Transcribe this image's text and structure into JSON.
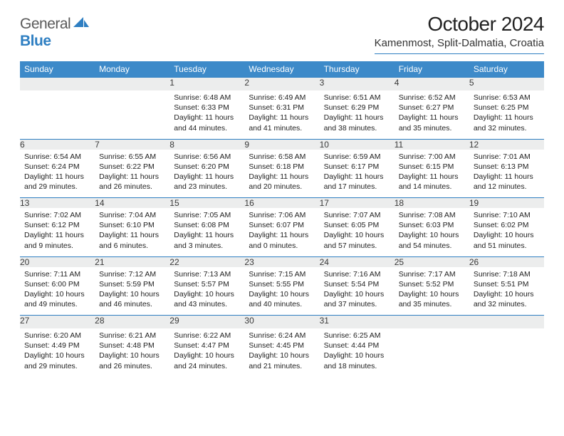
{
  "logo": {
    "word1": "General",
    "word2": "Blue"
  },
  "title": "October 2024",
  "location": "Kamenmost, Split-Dalmatia, Croatia",
  "colors": {
    "header_bg": "#3d8ac9",
    "rule": "#2f7fc2",
    "daynum_bg": "#eceded",
    "text": "#222222",
    "logo_gray": "#5a5a5a",
    "logo_blue": "#2f7fc2"
  },
  "day_headers": [
    "Sunday",
    "Monday",
    "Tuesday",
    "Wednesday",
    "Thursday",
    "Friday",
    "Saturday"
  ],
  "weeks": [
    [
      null,
      null,
      {
        "n": "1",
        "sr": "Sunrise: 6:48 AM",
        "ss": "Sunset: 6:33 PM",
        "dl1": "Daylight: 11 hours",
        "dl2": "and 44 minutes."
      },
      {
        "n": "2",
        "sr": "Sunrise: 6:49 AM",
        "ss": "Sunset: 6:31 PM",
        "dl1": "Daylight: 11 hours",
        "dl2": "and 41 minutes."
      },
      {
        "n": "3",
        "sr": "Sunrise: 6:51 AM",
        "ss": "Sunset: 6:29 PM",
        "dl1": "Daylight: 11 hours",
        "dl2": "and 38 minutes."
      },
      {
        "n": "4",
        "sr": "Sunrise: 6:52 AM",
        "ss": "Sunset: 6:27 PM",
        "dl1": "Daylight: 11 hours",
        "dl2": "and 35 minutes."
      },
      {
        "n": "5",
        "sr": "Sunrise: 6:53 AM",
        "ss": "Sunset: 6:25 PM",
        "dl1": "Daylight: 11 hours",
        "dl2": "and 32 minutes."
      }
    ],
    [
      {
        "n": "6",
        "sr": "Sunrise: 6:54 AM",
        "ss": "Sunset: 6:24 PM",
        "dl1": "Daylight: 11 hours",
        "dl2": "and 29 minutes."
      },
      {
        "n": "7",
        "sr": "Sunrise: 6:55 AM",
        "ss": "Sunset: 6:22 PM",
        "dl1": "Daylight: 11 hours",
        "dl2": "and 26 minutes."
      },
      {
        "n": "8",
        "sr": "Sunrise: 6:56 AM",
        "ss": "Sunset: 6:20 PM",
        "dl1": "Daylight: 11 hours",
        "dl2": "and 23 minutes."
      },
      {
        "n": "9",
        "sr": "Sunrise: 6:58 AM",
        "ss": "Sunset: 6:18 PM",
        "dl1": "Daylight: 11 hours",
        "dl2": "and 20 minutes."
      },
      {
        "n": "10",
        "sr": "Sunrise: 6:59 AM",
        "ss": "Sunset: 6:17 PM",
        "dl1": "Daylight: 11 hours",
        "dl2": "and 17 minutes."
      },
      {
        "n": "11",
        "sr": "Sunrise: 7:00 AM",
        "ss": "Sunset: 6:15 PM",
        "dl1": "Daylight: 11 hours",
        "dl2": "and 14 minutes."
      },
      {
        "n": "12",
        "sr": "Sunrise: 7:01 AM",
        "ss": "Sunset: 6:13 PM",
        "dl1": "Daylight: 11 hours",
        "dl2": "and 12 minutes."
      }
    ],
    [
      {
        "n": "13",
        "sr": "Sunrise: 7:02 AM",
        "ss": "Sunset: 6:12 PM",
        "dl1": "Daylight: 11 hours",
        "dl2": "and 9 minutes."
      },
      {
        "n": "14",
        "sr": "Sunrise: 7:04 AM",
        "ss": "Sunset: 6:10 PM",
        "dl1": "Daylight: 11 hours",
        "dl2": "and 6 minutes."
      },
      {
        "n": "15",
        "sr": "Sunrise: 7:05 AM",
        "ss": "Sunset: 6:08 PM",
        "dl1": "Daylight: 11 hours",
        "dl2": "and 3 minutes."
      },
      {
        "n": "16",
        "sr": "Sunrise: 7:06 AM",
        "ss": "Sunset: 6:07 PM",
        "dl1": "Daylight: 11 hours",
        "dl2": "and 0 minutes."
      },
      {
        "n": "17",
        "sr": "Sunrise: 7:07 AM",
        "ss": "Sunset: 6:05 PM",
        "dl1": "Daylight: 10 hours",
        "dl2": "and 57 minutes."
      },
      {
        "n": "18",
        "sr": "Sunrise: 7:08 AM",
        "ss": "Sunset: 6:03 PM",
        "dl1": "Daylight: 10 hours",
        "dl2": "and 54 minutes."
      },
      {
        "n": "19",
        "sr": "Sunrise: 7:10 AM",
        "ss": "Sunset: 6:02 PM",
        "dl1": "Daylight: 10 hours",
        "dl2": "and 51 minutes."
      }
    ],
    [
      {
        "n": "20",
        "sr": "Sunrise: 7:11 AM",
        "ss": "Sunset: 6:00 PM",
        "dl1": "Daylight: 10 hours",
        "dl2": "and 49 minutes."
      },
      {
        "n": "21",
        "sr": "Sunrise: 7:12 AM",
        "ss": "Sunset: 5:59 PM",
        "dl1": "Daylight: 10 hours",
        "dl2": "and 46 minutes."
      },
      {
        "n": "22",
        "sr": "Sunrise: 7:13 AM",
        "ss": "Sunset: 5:57 PM",
        "dl1": "Daylight: 10 hours",
        "dl2": "and 43 minutes."
      },
      {
        "n": "23",
        "sr": "Sunrise: 7:15 AM",
        "ss": "Sunset: 5:55 PM",
        "dl1": "Daylight: 10 hours",
        "dl2": "and 40 minutes."
      },
      {
        "n": "24",
        "sr": "Sunrise: 7:16 AM",
        "ss": "Sunset: 5:54 PM",
        "dl1": "Daylight: 10 hours",
        "dl2": "and 37 minutes."
      },
      {
        "n": "25",
        "sr": "Sunrise: 7:17 AM",
        "ss": "Sunset: 5:52 PM",
        "dl1": "Daylight: 10 hours",
        "dl2": "and 35 minutes."
      },
      {
        "n": "26",
        "sr": "Sunrise: 7:18 AM",
        "ss": "Sunset: 5:51 PM",
        "dl1": "Daylight: 10 hours",
        "dl2": "and 32 minutes."
      }
    ],
    [
      {
        "n": "27",
        "sr": "Sunrise: 6:20 AM",
        "ss": "Sunset: 4:49 PM",
        "dl1": "Daylight: 10 hours",
        "dl2": "and 29 minutes."
      },
      {
        "n": "28",
        "sr": "Sunrise: 6:21 AM",
        "ss": "Sunset: 4:48 PM",
        "dl1": "Daylight: 10 hours",
        "dl2": "and 26 minutes."
      },
      {
        "n": "29",
        "sr": "Sunrise: 6:22 AM",
        "ss": "Sunset: 4:47 PM",
        "dl1": "Daylight: 10 hours",
        "dl2": "and 24 minutes."
      },
      {
        "n": "30",
        "sr": "Sunrise: 6:24 AM",
        "ss": "Sunset: 4:45 PM",
        "dl1": "Daylight: 10 hours",
        "dl2": "and 21 minutes."
      },
      {
        "n": "31",
        "sr": "Sunrise: 6:25 AM",
        "ss": "Sunset: 4:44 PM",
        "dl1": "Daylight: 10 hours",
        "dl2": "and 18 minutes."
      },
      null,
      null
    ]
  ]
}
